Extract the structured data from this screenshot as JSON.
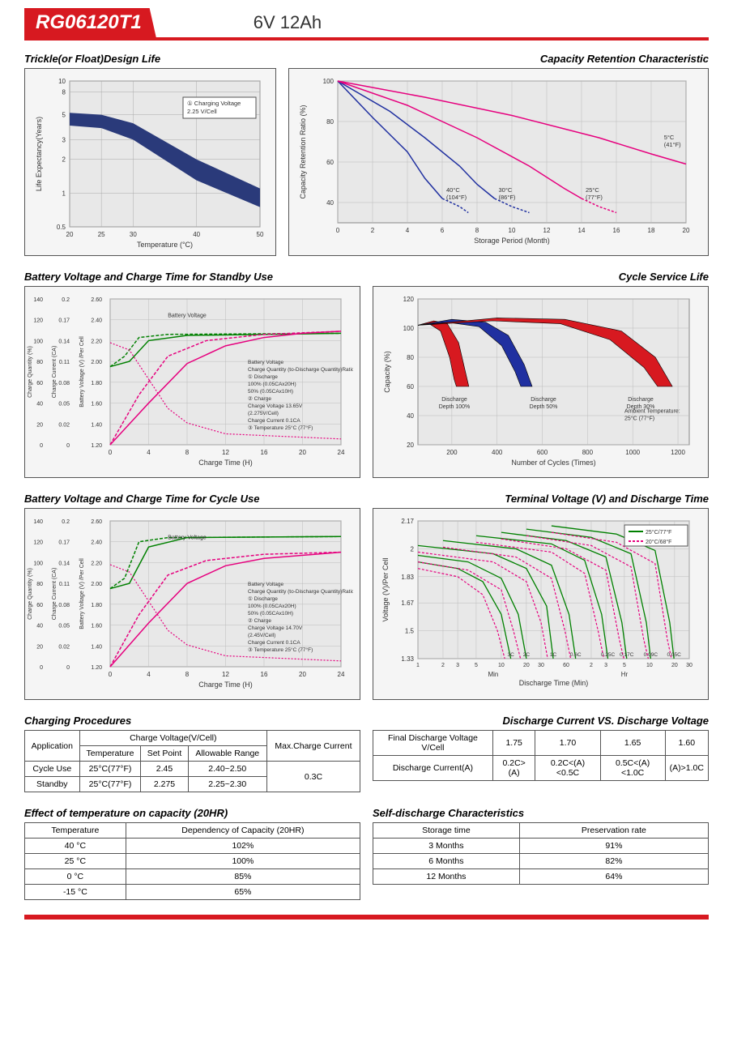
{
  "header": {
    "model": "RG06120T1",
    "spec": "6V  12Ah"
  },
  "chart1": {
    "title": "Trickle(or Float)Design Life",
    "x_label": "Temperature (°C)",
    "y_label": "Life Expectancy(Years)",
    "x_ticks": [
      20,
      25,
      30,
      40,
      50
    ],
    "y_ticks": [
      0.5,
      1,
      2,
      3,
      5,
      8,
      10
    ],
    "note_box": "① Charging Voltage\n2.25 V/Cell",
    "band_color": "#2a3a7a",
    "upper": [
      [
        20,
        5.2
      ],
      [
        25,
        5.0
      ],
      [
        30,
        4.2
      ],
      [
        40,
        2.0
      ],
      [
        50,
        1.1
      ]
    ],
    "lower": [
      [
        20,
        4.0
      ],
      [
        25,
        3.8
      ],
      [
        30,
        3.0
      ],
      [
        40,
        1.3
      ],
      [
        50,
        0.75
      ]
    ]
  },
  "chart2": {
    "title": "Capacity Retention Characteristic",
    "x_label": "Storage Period (Month)",
    "y_label": "Capacity Retention Ratio (%)",
    "x_ticks": [
      0,
      2,
      4,
      6,
      8,
      10,
      12,
      14,
      16,
      18,
      20
    ],
    "y_ticks": [
      40,
      60,
      80,
      100
    ],
    "lines": [
      {
        "label": "40°C\n(104°F)",
        "color": "#2030a0",
        "dash": false,
        "pts": [
          [
            0,
            100
          ],
          [
            2,
            82
          ],
          [
            4,
            65
          ],
          [
            5,
            52
          ],
          [
            6,
            42
          ]
        ],
        "dpts": [
          [
            6,
            42
          ],
          [
            7,
            38
          ],
          [
            7.5,
            35
          ]
        ]
      },
      {
        "label": "30°C\n(86°F)",
        "color": "#2030a0",
        "dash": false,
        "pts": [
          [
            0,
            100
          ],
          [
            3,
            85
          ],
          [
            5,
            72
          ],
          [
            7,
            58
          ],
          [
            8,
            49
          ],
          [
            9,
            42
          ]
        ],
        "dpts": [
          [
            9,
            42
          ],
          [
            10,
            38
          ],
          [
            11,
            35
          ]
        ]
      },
      {
        "label": "25°C\n(77°F)",
        "color": "#e6007e",
        "dash": false,
        "pts": [
          [
            0,
            100
          ],
          [
            4,
            88
          ],
          [
            8,
            72
          ],
          [
            11,
            58
          ],
          [
            13,
            47
          ],
          [
            14,
            42
          ]
        ],
        "dpts": [
          [
            14,
            42
          ],
          [
            15,
            38
          ],
          [
            16,
            35
          ]
        ]
      },
      {
        "label": "5°C\n(41°F)",
        "color": "#e6007e",
        "dash": false,
        "pts": [
          [
            0,
            100
          ],
          [
            5,
            92
          ],
          [
            10,
            83
          ],
          [
            15,
            72
          ],
          [
            18,
            64
          ],
          [
            20,
            59
          ]
        ],
        "lbl_xy": [
          18.5,
          68
        ]
      }
    ]
  },
  "chart3": {
    "title": "Battery Voltage and Charge Time for Standby Use",
    "x_label": "Charge Time (H)",
    "y1_label": "Charge Quantity (%)",
    "y2_label": "Charge Current (CA)",
    "y3_label": "Battery Voltage (V) /Per Cell",
    "x_ticks": [
      0,
      4,
      8,
      12,
      16,
      20,
      24
    ],
    "y1_ticks": [
      0,
      20,
      40,
      60,
      80,
      100,
      120,
      140
    ],
    "y2_ticks": [
      0,
      0.02,
      0.05,
      0.08,
      0.11,
      0.14,
      0.17,
      0.2
    ],
    "y3_ticks": [
      1.2,
      1.4,
      1.6,
      1.8,
      2.0,
      2.2,
      2.4,
      2.6
    ],
    "legend": [
      "Battery Voltage",
      "Charge Quantity (to-Discharge Quantity)Ratio",
      "① Discharge",
      "   100% (0.05CAx20H)",
      "   50% (0.05CAx10H)",
      "② Charge",
      "   Charge Voltage 13.65V",
      "   (2.275V/Cell)",
      "   Charge Current 0.1CA",
      "③ Temperature 25°C (77°F)"
    ],
    "green": "#008000",
    "pink": "#e6007e",
    "bv100": [
      [
        0,
        1.95
      ],
      [
        2,
        2.0
      ],
      [
        4,
        2.2
      ],
      [
        8,
        2.25
      ],
      [
        24,
        2.27
      ]
    ],
    "bv50": [
      [
        0,
        1.95
      ],
      [
        1.5,
        2.05
      ],
      [
        3,
        2.23
      ],
      [
        6,
        2.26
      ],
      [
        24,
        2.27
      ]
    ],
    "cq100": [
      [
        0,
        0
      ],
      [
        4,
        40
      ],
      [
        8,
        78
      ],
      [
        12,
        95
      ],
      [
        16,
        103
      ],
      [
        20,
        107
      ],
      [
        24,
        109
      ]
    ],
    "cq50": [
      [
        0,
        0
      ],
      [
        3,
        48
      ],
      [
        6,
        85
      ],
      [
        10,
        100
      ],
      [
        16,
        106
      ],
      [
        24,
        109
      ]
    ],
    "cc": [
      [
        0,
        0.14
      ],
      [
        2,
        0.13
      ],
      [
        4,
        0.09
      ],
      [
        6,
        0.05
      ],
      [
        8,
        0.03
      ],
      [
        12,
        0.015
      ],
      [
        24,
        0.008
      ]
    ]
  },
  "chart4": {
    "title": "Cycle Service Life",
    "x_label": "Number of Cycles (Times)",
    "y_label": "Capacity (%)",
    "x_ticks": [
      200,
      400,
      600,
      800,
      1000,
      1200
    ],
    "y_ticks": [
      20,
      40,
      60,
      80,
      100,
      120
    ],
    "labels": [
      "Discharge\nDepth 100%",
      "Discharge\nDepth 50%",
      "Discharge\nDepth 30%"
    ],
    "ambient": "Ambient Temperature:\n25°C (77°F)",
    "wedge1": {
      "color": "#d71920",
      "outer": [
        [
          50,
          102
        ],
        [
          120,
          105
        ],
        [
          180,
          103
        ],
        [
          230,
          90
        ],
        [
          260,
          70
        ],
        [
          275,
          60
        ]
      ],
      "inner": [
        [
          50,
          102
        ],
        [
          100,
          103
        ],
        [
          150,
          98
        ],
        [
          190,
          80
        ],
        [
          210,
          65
        ],
        [
          220,
          60
        ]
      ]
    },
    "wedge2": {
      "color": "#2030a0",
      "outer": [
        [
          50,
          102
        ],
        [
          200,
          106
        ],
        [
          350,
          104
        ],
        [
          450,
          95
        ],
        [
          520,
          75
        ],
        [
          555,
          60
        ]
      ],
      "inner": [
        [
          50,
          102
        ],
        [
          180,
          104
        ],
        [
          320,
          101
        ],
        [
          420,
          88
        ],
        [
          480,
          70
        ],
        [
          505,
          60
        ]
      ]
    },
    "wedge3": {
      "color": "#d71920",
      "outer": [
        [
          50,
          102
        ],
        [
          400,
          107
        ],
        [
          700,
          106
        ],
        [
          950,
          98
        ],
        [
          1100,
          80
        ],
        [
          1175,
          60
        ]
      ],
      "inner": [
        [
          50,
          102
        ],
        [
          380,
          105
        ],
        [
          680,
          103
        ],
        [
          900,
          92
        ],
        [
          1050,
          73
        ],
        [
          1110,
          60
        ]
      ]
    }
  },
  "chart5": {
    "title": "Battery Voltage and Charge Time for Cycle Use",
    "x_label": "Charge Time (H)",
    "legend": [
      "Battery Voltage",
      "Charge Quantity (to-Discharge Quantity)Ratio",
      "① Discharge",
      "   100% (0.05CAx20H)",
      "   50% (0.05CAx10H)",
      "② Charge",
      "   Charge Voltage 14.70V",
      "   (2.45V/Cell)",
      "   Charge Current 0.1CA",
      "③ Temperature 25°C (77°F)"
    ],
    "bv100": [
      [
        0,
        1.95
      ],
      [
        2,
        2.0
      ],
      [
        4,
        2.35
      ],
      [
        8,
        2.44
      ],
      [
        24,
        2.45
      ]
    ],
    "bv50": [
      [
        0,
        1.95
      ],
      [
        1.5,
        2.05
      ],
      [
        3,
        2.4
      ],
      [
        6,
        2.44
      ],
      [
        24,
        2.45
      ]
    ],
    "cq100": [
      [
        0,
        0
      ],
      [
        4,
        42
      ],
      [
        8,
        80
      ],
      [
        12,
        97
      ],
      [
        16,
        104
      ],
      [
        24,
        110
      ]
    ],
    "cq50": [
      [
        0,
        0
      ],
      [
        3,
        50
      ],
      [
        6,
        88
      ],
      [
        10,
        102
      ],
      [
        16,
        108
      ],
      [
        24,
        110
      ]
    ],
    "cc": [
      [
        0,
        0.14
      ],
      [
        2,
        0.13
      ],
      [
        4,
        0.09
      ],
      [
        6,
        0.05
      ],
      [
        8,
        0.03
      ],
      [
        12,
        0.015
      ],
      [
        24,
        0.008
      ]
    ]
  },
  "chart6": {
    "title": "Terminal Voltage (V) and Discharge Time",
    "x_label": "Discharge Time (Min)",
    "y_label": "Voltage (V)/Per Cell",
    "y_ticks": [
      1.33,
      1.5,
      1.67,
      1.83,
      2.0,
      2.17
    ],
    "x_min_ticks": [
      1,
      2,
      3,
      5,
      10,
      20,
      30,
      60
    ],
    "x_hr_ticks": [
      2,
      3,
      5,
      10,
      20,
      30
    ],
    "legend": [
      {
        "color": "#008000",
        "label": "25°C/77°F"
      },
      {
        "color": "#e6007e",
        "label": "20°C/68°F"
      }
    ],
    "rates": [
      "3C",
      "2C",
      "1C",
      "0.6C",
      "0.25C",
      "0.17C",
      "0.09C",
      "0.05C"
    ],
    "curves": [
      {
        "rate": "3C",
        "g": [
          [
            1,
            1.92
          ],
          [
            3,
            1.88
          ],
          [
            6,
            1.8
          ],
          [
            10,
            1.6
          ],
          [
            13,
            1.33
          ]
        ],
        "p": [
          [
            1,
            1.88
          ],
          [
            3,
            1.83
          ],
          [
            6,
            1.72
          ],
          [
            9,
            1.5
          ],
          [
            11,
            1.33
          ]
        ]
      },
      {
        "rate": "2C",
        "g": [
          [
            1,
            1.96
          ],
          [
            4,
            1.92
          ],
          [
            10,
            1.82
          ],
          [
            16,
            1.6
          ],
          [
            20,
            1.33
          ]
        ],
        "p": [
          [
            1,
            1.92
          ],
          [
            4,
            1.87
          ],
          [
            10,
            1.75
          ],
          [
            14,
            1.5
          ],
          [
            17,
            1.33
          ]
        ]
      },
      {
        "rate": "1C",
        "g": [
          [
            1,
            2.02
          ],
          [
            8,
            1.97
          ],
          [
            20,
            1.88
          ],
          [
            35,
            1.65
          ],
          [
            42,
            1.33
          ]
        ],
        "p": [
          [
            1,
            1.98
          ],
          [
            8,
            1.92
          ],
          [
            20,
            1.8
          ],
          [
            30,
            1.55
          ],
          [
            36,
            1.33
          ]
        ]
      },
      {
        "rate": "0.6C",
        "g": [
          [
            2,
            2.05
          ],
          [
            15,
            2.0
          ],
          [
            40,
            1.9
          ],
          [
            65,
            1.6
          ],
          [
            78,
            1.33
          ]
        ],
        "p": [
          [
            2,
            2.01
          ],
          [
            15,
            1.95
          ],
          [
            40,
            1.82
          ],
          [
            58,
            1.5
          ],
          [
            68,
            1.33
          ]
        ]
      },
      {
        "rate": "0.25C",
        "g": [
          [
            5,
            2.08
          ],
          [
            40,
            2.03
          ],
          [
            100,
            1.93
          ],
          [
            160,
            1.6
          ],
          [
            190,
            1.33
          ]
        ],
        "p": [
          [
            5,
            2.04
          ],
          [
            40,
            1.98
          ],
          [
            100,
            1.85
          ],
          [
            145,
            1.5
          ],
          [
            170,
            1.33
          ]
        ]
      },
      {
        "rate": "0.17C",
        "g": [
          [
            10,
            2.1
          ],
          [
            60,
            2.05
          ],
          [
            180,
            1.95
          ],
          [
            280,
            1.55
          ],
          [
            320,
            1.33
          ]
        ],
        "p": [
          [
            10,
            2.06
          ],
          [
            60,
            2.0
          ],
          [
            180,
            1.87
          ],
          [
            260,
            1.45
          ],
          [
            295,
            1.33
          ]
        ]
      },
      {
        "rate": "0.09C",
        "g": [
          [
            20,
            2.12
          ],
          [
            120,
            2.07
          ],
          [
            360,
            1.97
          ],
          [
            550,
            1.55
          ],
          [
            620,
            1.33
          ]
        ],
        "p": [
          [
            20,
            2.08
          ],
          [
            120,
            2.02
          ],
          [
            360,
            1.89
          ],
          [
            510,
            1.45
          ],
          [
            580,
            1.33
          ]
        ]
      },
      {
        "rate": "0.05C",
        "g": [
          [
            40,
            2.14
          ],
          [
            240,
            2.09
          ],
          [
            700,
            1.99
          ],
          [
            1050,
            1.55
          ],
          [
            1180,
            1.33
          ]
        ],
        "p": [
          [
            40,
            2.1
          ],
          [
            240,
            2.04
          ],
          [
            700,
            1.91
          ],
          [
            980,
            1.45
          ],
          [
            1100,
            1.33
          ]
        ]
      }
    ]
  },
  "tables": {
    "charging": {
      "title": "Charging Procedures",
      "headers": [
        "Application",
        "Temperature",
        "Set Point",
        "Allowable Range",
        "Max.Charge Current"
      ],
      "h2": "Charge Voltage(V/Cell)",
      "rows": [
        [
          "Cycle Use",
          "25°C(77°F)",
          "2.45",
          "2.40~2.50",
          "0.3C"
        ],
        [
          "Standby",
          "25°C(77°F)",
          "2.275",
          "2.25~2.30",
          ""
        ]
      ]
    },
    "discharge_v": {
      "title": "Discharge Current VS. Discharge Voltage",
      "r1": [
        "Final Discharge Voltage V/Cell",
        "1.75",
        "1.70",
        "1.65",
        "1.60"
      ],
      "r2": [
        "Discharge Current(A)",
        "0.2C>(A)",
        "0.2C<(A)<0.5C",
        "0.5C<(A)<1.0C",
        "(A)>1.0C"
      ]
    },
    "temp_cap": {
      "title": "Effect of temperature on capacity (20HR)",
      "headers": [
        "Temperature",
        "Dependency of Capacity (20HR)"
      ],
      "rows": [
        [
          "40 °C",
          "102%"
        ],
        [
          "25 °C",
          "100%"
        ],
        [
          "0 °C",
          "85%"
        ],
        [
          "-15 °C",
          "65%"
        ]
      ]
    },
    "self_discharge": {
      "title": "Self-discharge Characteristics",
      "headers": [
        "Storage time",
        "Preservation rate"
      ],
      "rows": [
        [
          "3 Months",
          "91%"
        ],
        [
          "6 Months",
          "82%"
        ],
        [
          "12 Months",
          "64%"
        ]
      ]
    }
  }
}
